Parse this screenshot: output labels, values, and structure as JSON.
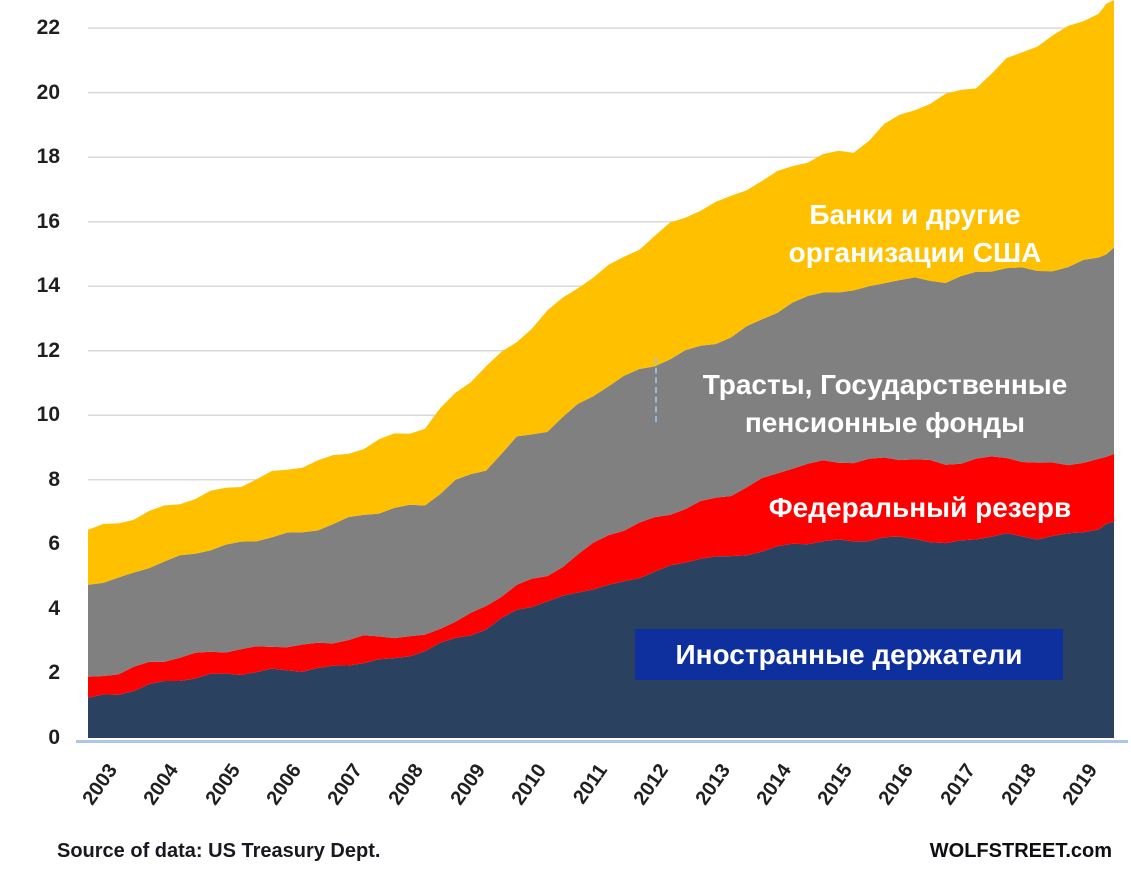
{
  "footer": {
    "source": "Source of data: US Treasury Dept.",
    "brand": "WOLFSTREET.com"
  },
  "labels": {
    "banks": {
      "line1": "Банки и другие",
      "line2": "организации США"
    },
    "trusts": {
      "line1": "Трасты, Государственные",
      "line2": "пенсионные фонды"
    },
    "fed": {
      "text": "Федеральный резерв"
    },
    "foreign": {
      "text": "Иностранные держатели",
      "box_color": "#0E2F9E"
    }
  },
  "style_colors": {
    "gridline": "#D9D9D9",
    "axis_line": "#AEC8E4",
    "tick_text": "#1F1F1F"
  },
  "chart_data": {
    "type": "area",
    "stacked": true,
    "title": "",
    "xlabel": "",
    "ylabel": "",
    "units": "trillions USD",
    "grid": "horizontal",
    "legend_position": "inline-labels",
    "ylim": [
      0,
      22.87
    ],
    "yticks": [
      0,
      2,
      4,
      6,
      8,
      10,
      12,
      14,
      16,
      18,
      20,
      22
    ],
    "xticks": [
      2003,
      2004,
      2005,
      2006,
      2007,
      2008,
      2009,
      2010,
      2011,
      2012,
      2013,
      2014,
      2015,
      2016,
      2017,
      2018,
      2019
    ],
    "x": [
      2003.0,
      2003.5,
      2004.0,
      2004.5,
      2005.0,
      2005.5,
      2006.0,
      2006.5,
      2007.0,
      2007.5,
      2008.0,
      2008.5,
      2009.0,
      2009.5,
      2010.0,
      2010.5,
      2011.0,
      2011.5,
      2012.0,
      2012.5,
      2013.0,
      2013.5,
      2014.0,
      2014.5,
      2015.0,
      2015.5,
      2016.0,
      2016.5,
      2017.0,
      2017.5,
      2018.0,
      2018.5,
      2019.0,
      2019.5,
      2019.75
    ],
    "series": [
      {
        "name": "Иностранные держатели",
        "color": "#2A4160",
        "values": [
          1.25,
          1.35,
          1.65,
          1.8,
          1.95,
          2.0,
          2.1,
          2.1,
          2.2,
          2.35,
          2.45,
          2.7,
          3.1,
          3.35,
          4.0,
          4.2,
          4.55,
          4.7,
          5.0,
          5.3,
          5.6,
          5.6,
          5.8,
          6.0,
          6.1,
          6.1,
          6.2,
          6.2,
          6.0,
          6.2,
          6.3,
          6.2,
          6.3,
          6.5,
          6.7
        ]
      },
      {
        "name": "Федеральный резерв",
        "color": "#FF0000",
        "values": [
          0.65,
          0.66,
          0.68,
          0.7,
          0.72,
          0.74,
          0.75,
          0.76,
          0.78,
          0.78,
          0.7,
          0.45,
          0.55,
          0.7,
          0.78,
          0.8,
          1.15,
          1.6,
          1.65,
          1.65,
          1.7,
          1.95,
          2.2,
          2.4,
          2.46,
          2.46,
          2.46,
          2.46,
          2.46,
          2.45,
          2.4,
          2.3,
          2.2,
          2.1,
          2.1
        ]
      },
      {
        "name": "Трасты, Государственные пенсионные фонды",
        "color": "#808080",
        "values": [
          2.85,
          2.9,
          3.0,
          3.1,
          3.2,
          3.3,
          3.4,
          3.5,
          3.65,
          3.8,
          3.95,
          4.1,
          4.3,
          4.3,
          4.5,
          4.55,
          4.6,
          4.65,
          4.75,
          4.8,
          4.85,
          4.85,
          5.0,
          5.05,
          5.3,
          5.25,
          5.5,
          5.55,
          5.7,
          5.75,
          5.9,
          5.95,
          6.1,
          6.3,
          6.4
        ]
      },
      {
        "name": "Банки и другие организации США",
        "color": "#FFC000",
        "values": [
          1.7,
          1.76,
          1.67,
          1.7,
          1.73,
          1.81,
          1.95,
          2.09,
          2.07,
          2.07,
          2.3,
          2.35,
          2.75,
          3.15,
          3.02,
          3.65,
          3.7,
          3.65,
          3.8,
          4.15,
          4.25,
          4.35,
          4.3,
          4.25,
          4.24,
          4.34,
          4.84,
          5.29,
          5.74,
          5.8,
          6.4,
          7.05,
          7.4,
          7.6,
          7.7
        ]
      }
    ]
  }
}
